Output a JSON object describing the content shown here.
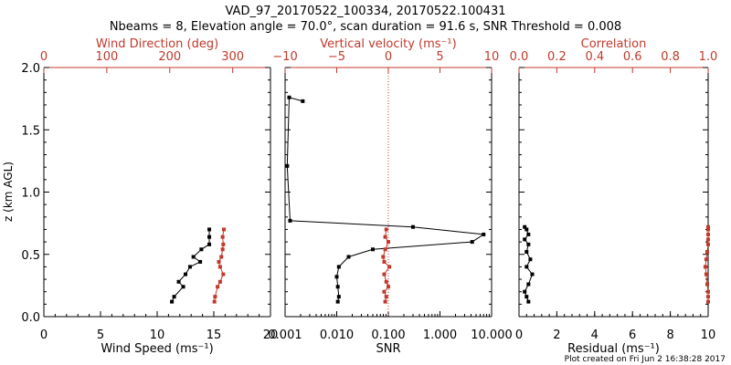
{
  "title": "VAD_97_20170522_100334, 20170522.100431",
  "subtitle": "Nbeams = 8, Elevation angle = 70.0°, scan duration = 91.6 s, SNR Threshold = 0.008",
  "footer": "Plot created on Fri Jun  2 16:38:28 2017",
  "colors": {
    "black": "#000000",
    "red": "#c0392b"
  },
  "chart_data": [
    {
      "type": "line",
      "ylabel": "z (km AGL)",
      "ylim": [
        0,
        2
      ],
      "yticks": [
        "0.0",
        "0.5",
        "1.0",
        "1.5",
        "2.0"
      ],
      "bottom_axis": {
        "label": "Wind Speed (ms⁻¹)",
        "lim": [
          0,
          20
        ],
        "ticks": [
          "0",
          "5",
          "10",
          "15",
          "20"
        ]
      },
      "top_axis": {
        "label": "Wind Direction (deg)",
        "lim": [
          0,
          360
        ],
        "ticks": [
          "0",
          "100",
          "200",
          "300"
        ]
      },
      "series": [
        {
          "name": "Wind Speed (ms⁻¹)",
          "axis": "bottom",
          "color": "#000000",
          "x": [
            11.3,
            11.5,
            12.3,
            11.9,
            12.5,
            12.9,
            13.8,
            13.2,
            13.9,
            14.6,
            14.6,
            14.6
          ],
          "y": [
            0.12,
            0.16,
            0.24,
            0.28,
            0.34,
            0.4,
            0.44,
            0.48,
            0.54,
            0.58,
            0.64,
            0.7
          ]
        },
        {
          "name": "Wind Direction (deg)",
          "axis": "top",
          "color": "#c0392b",
          "x": [
            271,
            272,
            276,
            280,
            285,
            280,
            278,
            282,
            284,
            285,
            284,
            286
          ],
          "y": [
            0.12,
            0.16,
            0.24,
            0.28,
            0.34,
            0.4,
            0.44,
            0.48,
            0.54,
            0.58,
            0.64,
            0.7
          ]
        }
      ]
    },
    {
      "type": "line",
      "ylim": [
        0,
        2
      ],
      "bottom_axis": {
        "label": "SNR",
        "scale": "log",
        "lim": [
          0.001,
          10
        ],
        "ticks": [
          "0.001",
          "0.010",
          "0.100",
          "1.000",
          "10.000"
        ]
      },
      "top_axis": {
        "label": "Vertical velocity (ms⁻¹)",
        "lim": [
          -10,
          10
        ],
        "ticks": [
          "−10",
          "−5",
          "0",
          "5",
          "10"
        ],
        "zero_line": true
      },
      "series": [
        {
          "name": "SNR",
          "axis": "bottom",
          "color": "#000000",
          "x": [
            0.0105,
            0.011,
            0.0105,
            0.01,
            0.011,
            0.017,
            0.05,
            4.2,
            7.0,
            0.3,
            0.00125,
            0.0011,
            0.0012,
            0.0022
          ],
          "y": [
            0.12,
            0.16,
            0.24,
            0.32,
            0.4,
            0.48,
            0.54,
            0.6,
            0.66,
            0.72,
            0.77,
            1.21,
            1.76,
            1.73
          ]
        },
        {
          "name": "Vertical velocity (ms⁻¹)",
          "axis": "top",
          "color": "#c0392b",
          "x": [
            -0.3,
            -0.2,
            -0.4,
            0.0,
            -0.2,
            -0.4,
            0.1,
            -0.4,
            -0.5,
            -0.3,
            0.0,
            -0.3,
            -0.2
          ],
          "y": [
            0.12,
            0.16,
            0.2,
            0.24,
            0.28,
            0.34,
            0.4,
            0.44,
            0.48,
            0.54,
            0.6,
            0.64,
            0.7
          ]
        }
      ]
    },
    {
      "type": "line",
      "ylim": [
        0,
        2
      ],
      "bottom_axis": {
        "label": "Residual (ms⁻¹)",
        "lim": [
          0,
          10
        ],
        "ticks": [
          "0",
          "2",
          "4",
          "6",
          "8",
          "10"
        ]
      },
      "top_axis": {
        "label": "Correlation",
        "lim": [
          0,
          1
        ],
        "ticks": [
          "0.0",
          "0.2",
          "0.4",
          "0.6",
          "0.8",
          "1.0"
        ]
      },
      "series": [
        {
          "name": "Residual (ms⁻¹)",
          "axis": "bottom",
          "color": "#000000",
          "x": [
            0.5,
            0.4,
            0.3,
            0.5,
            0.7,
            0.4,
            0.6,
            0.4,
            0.5,
            0.3,
            0.5,
            0.4,
            0.3
          ],
          "y": [
            0.12,
            0.16,
            0.2,
            0.26,
            0.34,
            0.4,
            0.46,
            0.52,
            0.58,
            0.62,
            0.66,
            0.7,
            0.72
          ]
        },
        {
          "name": "Correlation",
          "axis": "top",
          "color": "#c0392b",
          "x": [
            1.0,
            1.0,
            1.0,
            0.995,
            0.99,
            0.985,
            0.99,
            0.995,
            1.0,
            1.0,
            1.0,
            1.0,
            1.0
          ],
          "y": [
            0.12,
            0.16,
            0.2,
            0.26,
            0.34,
            0.4,
            0.46,
            0.52,
            0.58,
            0.62,
            0.66,
            0.7,
            0.72
          ]
        }
      ]
    }
  ]
}
